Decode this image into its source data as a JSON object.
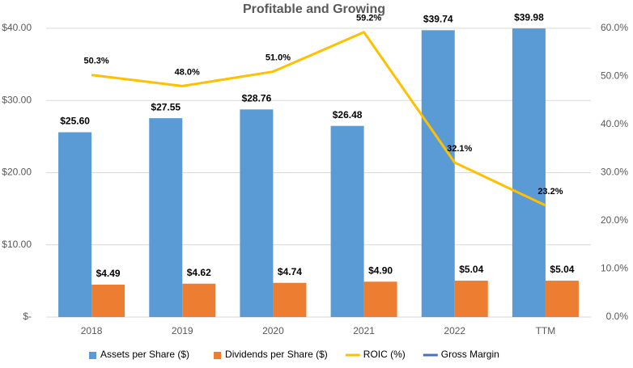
{
  "chart_data": {
    "type": "bar-line",
    "title": "Profitable and Growing",
    "categories": [
      "2018",
      "2019",
      "2020",
      "2021",
      "2022",
      "TTM"
    ],
    "series": [
      {
        "name": "Assets per Share ($)",
        "type": "bar",
        "color": "#5b9bd5",
        "values": [
          25.6,
          27.55,
          28.76,
          26.48,
          39.74,
          39.98
        ],
        "value_labels": [
          "$25.60",
          "$27.55",
          "$28.76",
          "$26.48",
          "$39.74",
          "$39.98"
        ]
      },
      {
        "name": "Dividends per Share ($)",
        "type": "bar",
        "color": "#ed7d31",
        "values": [
          4.49,
          4.62,
          4.74,
          4.9,
          5.04,
          5.04
        ],
        "value_labels": [
          "$4.49",
          "$4.62",
          "$4.74",
          "$4.90",
          "$5.04",
          "$5.04"
        ]
      },
      {
        "name": "ROIC (%)",
        "type": "line",
        "axis": "y2",
        "color": "#ffc000",
        "values": [
          50.3,
          48.0,
          51.0,
          59.2,
          32.1,
          23.2
        ],
        "value_labels": [
          "50.3%",
          "48.0%",
          "51.0%",
          "59.2%",
          "32.1%",
          "23.2%"
        ]
      },
      {
        "name": "Gross Margin",
        "type": "line",
        "axis": "y2",
        "color": "#4472c4",
        "values": [
          null,
          null,
          null,
          null,
          null,
          null
        ]
      }
    ],
    "ylim": [
      0,
      40
    ],
    "yticks": [
      {
        "value": 0,
        "label": "$-"
      },
      {
        "value": 10,
        "label": "$10.00"
      },
      {
        "value": 20,
        "label": "$20.00"
      },
      {
        "value": 30,
        "label": "$30.00"
      },
      {
        "value": 40,
        "label": "$40.00"
      }
    ],
    "y2lim": [
      0,
      60
    ],
    "y2ticks": [
      {
        "value": 0,
        "label": "0.0%"
      },
      {
        "value": 10,
        "label": "10.0%"
      },
      {
        "value": 20,
        "label": "20.0%"
      },
      {
        "value": 30,
        "label": "30.0%"
      },
      {
        "value": 40,
        "label": "40.0%"
      },
      {
        "value": 50,
        "label": "50.0%"
      },
      {
        "value": 60,
        "label": "60.0%"
      }
    ],
    "grid": true,
    "legend": "bottom"
  }
}
